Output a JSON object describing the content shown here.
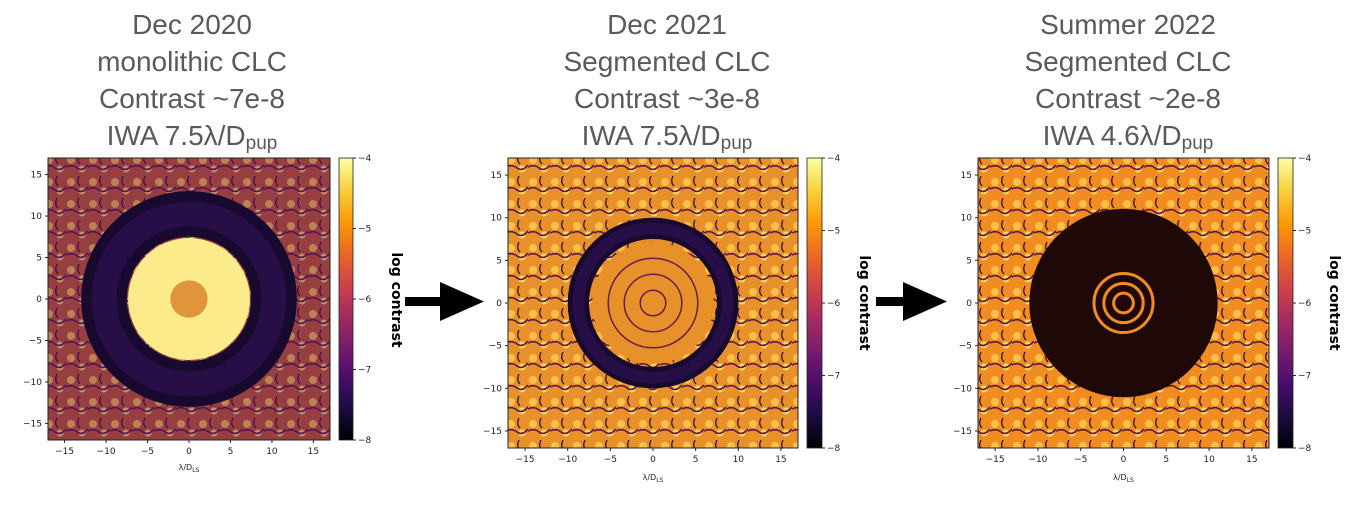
{
  "chart_data": [
    {
      "type": "heatmap",
      "title_lines": [
        "Dec 2020",
        "monolithic CLC",
        "Contrast ~7e-8"
      ],
      "iwa_text": "IWA 7.5λ/D",
      "iwa_sub": "pup",
      "xlabel": "λ/D",
      "xlabel_sub": "LS",
      "x_ticks": [
        "−15",
        "−10",
        "−5",
        "0",
        "5",
        "10",
        "15"
      ],
      "y_ticks": [
        "15",
        "10",
        "5",
        "0",
        "−5",
        "−10",
        "−15"
      ],
      "xlim": [
        -17,
        17
      ],
      "ylim": [
        -17,
        17
      ],
      "colorbar": {
        "label": "log contrast",
        "ticks": [
          "−4",
          "−5",
          "−6",
          "−7",
          "−8"
        ],
        "range": [
          -8,
          -4
        ],
        "colormap": "inferno"
      },
      "dark_hole_radii": [
        7.5,
        13
      ],
      "contrast": 7e-08
    },
    {
      "type": "heatmap",
      "title_lines": [
        "Dec 2021",
        "Segmented CLC",
        "Contrast ~3e-8"
      ],
      "iwa_text": "IWA 7.5λ/D",
      "iwa_sub": "pup",
      "xlabel": "λ/D",
      "xlabel_sub": "LS",
      "x_ticks": [
        "−15",
        "−10",
        "−5",
        "0",
        "5",
        "10",
        "15"
      ],
      "y_ticks": [
        "15",
        "10",
        "5",
        "0",
        "−5",
        "−10",
        "−15"
      ],
      "xlim": [
        -17,
        17
      ],
      "ylim": [
        -17,
        17
      ],
      "colorbar": {
        "label": "log contrast",
        "ticks": [
          "−4",
          "−5",
          "−6",
          "−7",
          "−8"
        ],
        "range": [
          -8,
          -4
        ],
        "colormap": "inferno"
      },
      "dark_hole_radii": [
        7.5,
        10
      ],
      "contrast": 3e-08
    },
    {
      "type": "heatmap",
      "title_lines": [
        "Summer 2022",
        "Segmented CLC",
        "Contrast ~2e-8"
      ],
      "iwa_text": "IWA 4.6λ/D",
      "iwa_sub": "pup",
      "xlabel": "λ/D",
      "xlabel_sub": "LS",
      "x_ticks": [
        "−15",
        "−10",
        "−5",
        "0",
        "5",
        "10",
        "15"
      ],
      "y_ticks": [
        "15",
        "10",
        "5",
        "0",
        "−5",
        "−10",
        "−15"
      ],
      "xlim": [
        -17,
        17
      ],
      "ylim": [
        -17,
        17
      ],
      "colorbar": {
        "label": "log contrast",
        "ticks": [
          "−4",
          "−5",
          "−6",
          "−7",
          "−8"
        ],
        "range": [
          -8,
          -4
        ],
        "colormap": "inferno"
      },
      "dark_hole_radii": [
        4.6,
        11
      ],
      "contrast": 2e-08
    }
  ],
  "colors": {
    "title_gray": "#5a5a5a",
    "arrow": "#000000",
    "inferno": [
      "#000004",
      "#1b0c41",
      "#4a0c6b",
      "#781c6d",
      "#a52c60",
      "#cf4446",
      "#ed6925",
      "#fb9b06",
      "#f7d13d",
      "#fcffa4"
    ]
  }
}
